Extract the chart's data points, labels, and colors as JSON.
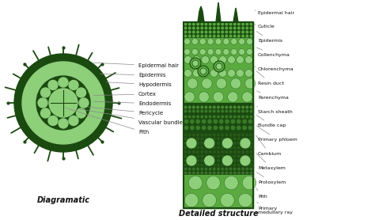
{
  "background_color": "#ffffff",
  "diagramatic_label": "Diagramatic",
  "detailed_label": "Detailed structure",
  "colors": {
    "light_green": "#8ecf7a",
    "mid_green": "#5aaa40",
    "dark_green": "#1a4a10",
    "text_color": "#111111",
    "line_color": "#888888"
  },
  "left_labels": [
    "Epidermal hair",
    "Epidermis",
    "Hypodermis",
    "Cortex",
    "Endodermis",
    "Pericycle",
    "Vascular bundle",
    "Pith"
  ],
  "right_labels": [
    "Epidermal hair",
    "Cuticle",
    "Epidermis",
    "Collenchyma",
    "Chlorenchyma",
    "Resin duct",
    "Parenchyma",
    "Starch sheath",
    "Bundle cap",
    "Primary phloem",
    "Cambium",
    "Metaxylem",
    "Protoxylem",
    "Pith",
    "Primary\nmedullary ray"
  ]
}
